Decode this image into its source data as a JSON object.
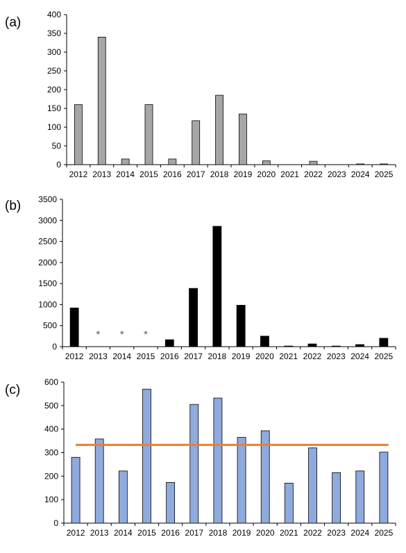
{
  "figure": {
    "panels": [
      "(a)",
      "(b)",
      "(c)"
    ]
  },
  "chart_data": [
    {
      "type": "bar",
      "panel_label": "(a)",
      "categories": [
        "2012",
        "2013",
        "2014",
        "2015",
        "2016",
        "2017",
        "2018",
        "2019",
        "2020",
        "2021",
        "2022",
        "2023",
        "2024",
        "2025"
      ],
      "values": [
        160,
        340,
        15,
        160,
        15,
        117,
        185,
        135,
        10,
        0,
        9,
        0,
        2,
        2
      ],
      "ylim": [
        0,
        400
      ],
      "yticks": [
        0,
        50,
        100,
        150,
        200,
        250,
        300,
        350,
        400
      ],
      "bar_color": "#a6a6a6",
      "grid": false
    },
    {
      "type": "bar",
      "panel_label": "(b)",
      "categories": [
        "2012",
        "2013",
        "2014",
        "2015",
        "2016",
        "2017",
        "2018",
        "2019",
        "2020",
        "2021",
        "2022",
        "2023",
        "2024",
        "2025"
      ],
      "values": [
        920,
        null,
        null,
        null,
        165,
        1385,
        2860,
        985,
        250,
        15,
        65,
        15,
        50,
        200
      ],
      "markers": [
        {
          "category": "2013",
          "text": "*"
        },
        {
          "category": "2014",
          "text": "*"
        },
        {
          "category": "2015",
          "text": "*"
        }
      ],
      "ylim": [
        0,
        3500
      ],
      "yticks": [
        0,
        500,
        1000,
        1500,
        2000,
        2500,
        3000,
        3500
      ],
      "bar_color": "#000000",
      "grid": false
    },
    {
      "type": "bar",
      "panel_label": "(c)",
      "categories": [
        "2012",
        "2013",
        "2014",
        "2015",
        "2016",
        "2017",
        "2018",
        "2019",
        "2020",
        "2021",
        "2022",
        "2023",
        "2024",
        "2025"
      ],
      "values": [
        280,
        358,
        222,
        570,
        173,
        505,
        532,
        365,
        393,
        170,
        320,
        215,
        222,
        302
      ],
      "reference_line": {
        "value": 333,
        "color": "#ed7d31"
      },
      "ylim": [
        0,
        600
      ],
      "yticks": [
        0,
        100,
        200,
        300,
        400,
        500,
        600
      ],
      "bar_color": "#8faadc",
      "grid": false
    }
  ]
}
